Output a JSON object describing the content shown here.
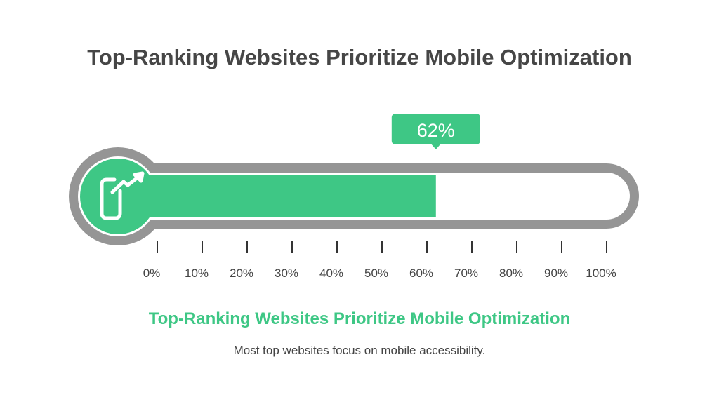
{
  "chart_data": {
    "type": "progress",
    "title": "Top-Ranking Websites Prioritize Mobile Optimization",
    "value": 62,
    "value_label": "62%",
    "range": [
      0,
      100
    ],
    "ticks": [
      "0%",
      "10%",
      "20%",
      "30%",
      "40%",
      "50%",
      "60%",
      "70%",
      "80%",
      "90%",
      "100%"
    ],
    "icon": "mobile-growth-icon",
    "subtitle": "Top-Ranking Websites Prioritize Mobile Optimization",
    "description": "Most top websites focus on mobile accessibility."
  },
  "colors": {
    "fill": "#3ec785",
    "track": "#959595",
    "text": "#464646"
  }
}
